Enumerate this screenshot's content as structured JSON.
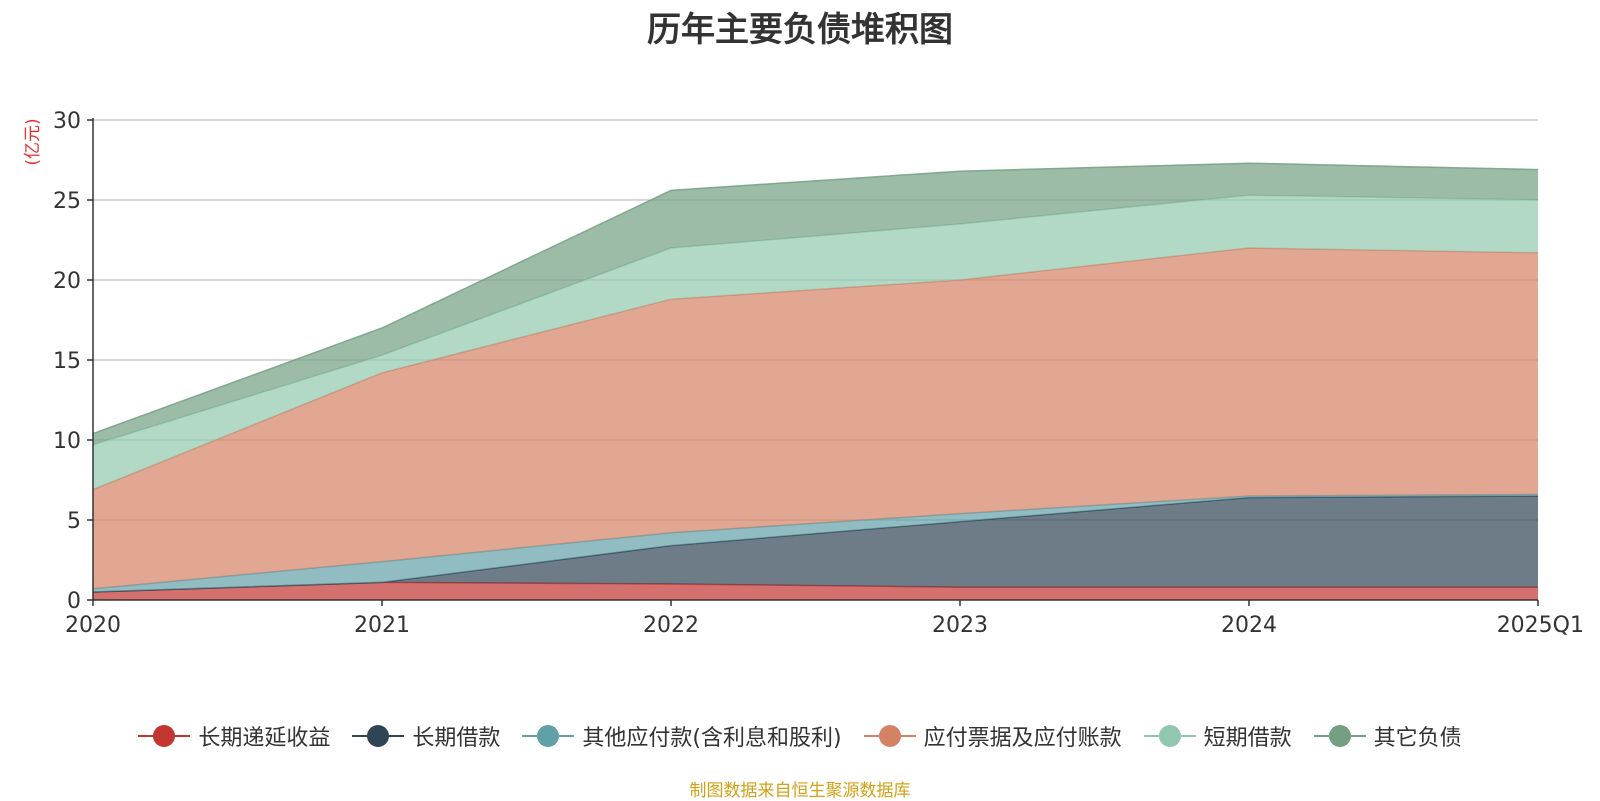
{
  "chart_data": {
    "type": "area",
    "stacked": true,
    "title": "历年主要负债堆积图",
    "unit_label": "(亿元)",
    "categories": [
      "2020",
      "2021",
      "2022",
      "2023",
      "2024",
      "2025Q1"
    ],
    "ylim": [
      0,
      30
    ],
    "yticks": [
      0,
      5,
      10,
      15,
      20,
      25,
      30
    ],
    "grid": true,
    "legend_position": "bottom",
    "series": [
      {
        "name": "长期递延收益",
        "color": "#c23531",
        "values": [
          0.5,
          1.1,
          1.0,
          0.8,
          0.8,
          0.8
        ]
      },
      {
        "name": "长期借款",
        "color": "#2f4554",
        "values": [
          0.0,
          0.0,
          2.4,
          4.1,
          5.6,
          5.7
        ]
      },
      {
        "name": "其他应付款(含利息和股利)",
        "color": "#61a0a8",
        "values": [
          0.2,
          1.3,
          0.8,
          0.5,
          0.1,
          0.1
        ]
      },
      {
        "name": "应付票据及应付账款",
        "color": "#d48265",
        "values": [
          6.2,
          11.8,
          14.6,
          14.6,
          15.5,
          15.1
        ]
      },
      {
        "name": "短期借款",
        "color": "#91c7ae",
        "values": [
          2.8,
          1.1,
          3.2,
          3.5,
          3.3,
          3.3
        ]
      },
      {
        "name": "其它负债",
        "color": "#749f83",
        "values": [
          0.7,
          1.7,
          3.6,
          3.3,
          2.0,
          1.9
        ]
      }
    ],
    "source_note": "制图数据来自恒生聚源数据库"
  }
}
